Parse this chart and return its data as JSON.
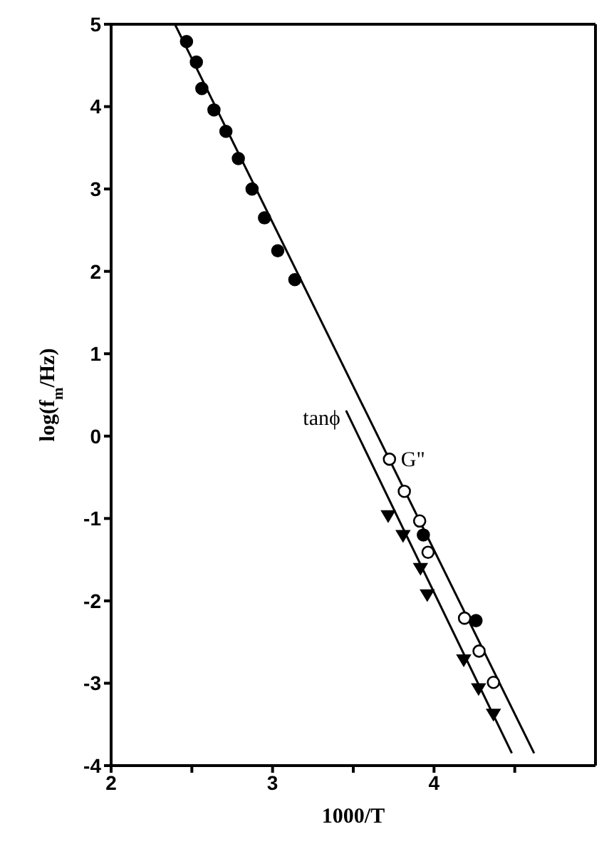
{
  "chart_data": {
    "type": "scatter",
    "xlabel": "1000/T",
    "ylabel": "log(f$_{m}$/Hz)",
    "xlim": [
      2,
      5
    ],
    "ylim": [
      -4,
      5
    ],
    "xticks": [
      2,
      {
        "value": 2.5,
        "label": null
      },
      3,
      {
        "value": 3.5,
        "label": null
      },
      4,
      {
        "value": 4.5,
        "label": null
      }
    ],
    "yticks": [
      -4,
      -3,
      -2,
      -1,
      0,
      1,
      2,
      3,
      4,
      5
    ],
    "grid": false,
    "legend": false,
    "annotations": [
      {
        "text": "tanϕ",
        "x": 3.455,
        "y": 0.31
      },
      {
        "text": "G\"",
        "x": 3.724,
        "y": -0.28
      }
    ],
    "series": [
      {
        "type": "scatter",
        "marker": "circle",
        "color": "#000000",
        "x": [
          2.467,
          2.528,
          2.562,
          2.637,
          2.711,
          2.788,
          2.873,
          2.95,
          3.032,
          3.138,
          3.934,
          4.26
        ],
        "values": [
          4.79,
          4.54,
          4.22,
          3.96,
          3.7,
          3.37,
          3.0,
          2.65,
          2.25,
          1.9,
          -1.2,
          -2.24
        ]
      },
      {
        "type": "scatter",
        "marker": "circle",
        "color": "#ffffff",
        "x": [
          3.724,
          3.816,
          3.911,
          3.963,
          4.189,
          4.279,
          4.368
        ],
        "values": [
          -0.28,
          -0.67,
          -1.03,
          -1.41,
          -2.21,
          -2.61,
          -2.99
        ]
      },
      {
        "type": "scatter",
        "marker": "triangle",
        "color": "#000000",
        "x": [
          3.716,
          3.808,
          3.916,
          3.958,
          4.184,
          4.276,
          4.368
        ],
        "values": [
          -0.96,
          -1.2,
          -1.6,
          -1.92,
          -2.71,
          -3.06,
          -3.37
        ]
      },
      {
        "type": "line",
        "marker": "none",
        "color": "#000000",
        "x": [
          2.395,
          4.62
        ],
        "values": [
          5,
          -3.85
        ]
      },
      {
        "type": "line",
        "marker": "none",
        "color": "#000000",
        "x": [
          3.455,
          4.482
        ],
        "values": [
          0.31,
          -3.85
        ]
      }
    ]
  }
}
